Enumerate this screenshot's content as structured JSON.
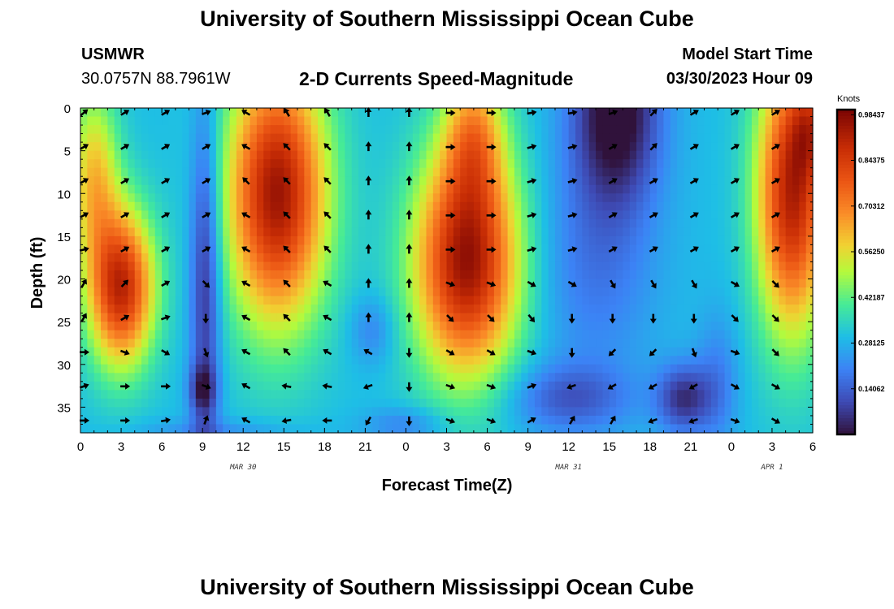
{
  "header": {
    "title": "University of Southern Mississippi Ocean Cube",
    "station": "USMWR",
    "coordinates": "30.0757N  88.7961W",
    "subtitle": "2-D Currents Speed-Magnitude",
    "model_start_label": "Model Start Time",
    "model_start_value": "03/30/2023 Hour 09"
  },
  "footer": {
    "title": "University of Southern Mississippi Ocean Cube"
  },
  "chart_data": {
    "type": "heatmap",
    "title": "2-D Currents Speed-Magnitude",
    "xlabel": "Forecast Time(Z)",
    "ylabel": "Depth (ft)",
    "x_range_hours": [
      0,
      54
    ],
    "x_ticks": [
      {
        "hour": 0,
        "label": "0"
      },
      {
        "hour": 3,
        "label": "3"
      },
      {
        "hour": 6,
        "label": "6"
      },
      {
        "hour": 9,
        "label": "9"
      },
      {
        "hour": 12,
        "label": "12"
      },
      {
        "hour": 15,
        "label": "15"
      },
      {
        "hour": 18,
        "label": "18"
      },
      {
        "hour": 21,
        "label": "21"
      },
      {
        "hour": 24,
        "label": "0"
      },
      {
        "hour": 27,
        "label": "3"
      },
      {
        "hour": 30,
        "label": "6"
      },
      {
        "hour": 33,
        "label": "9"
      },
      {
        "hour": 36,
        "label": "12"
      },
      {
        "hour": 39,
        "label": "15"
      },
      {
        "hour": 42,
        "label": "18"
      },
      {
        "hour": 45,
        "label": "21"
      },
      {
        "hour": 48,
        "label": "0"
      },
      {
        "hour": 51,
        "label": "3"
      },
      {
        "hour": 54,
        "label": "6"
      }
    ],
    "date_labels": [
      {
        "hour": 12,
        "label": "MAR 30"
      },
      {
        "hour": 36,
        "label": "MAR 31"
      },
      {
        "hour": 51,
        "label": "APR 1"
      }
    ],
    "y_range_ft": [
      0,
      38
    ],
    "y_ticks": [
      0,
      5,
      10,
      15,
      20,
      25,
      30,
      35
    ],
    "y_tick_labels": [
      "0",
      "5",
      "10",
      "15",
      "20",
      "25",
      "30",
      "35"
    ],
    "colorbar": {
      "unit": "Knots",
      "min": 0.0,
      "max": 1.0,
      "labels": [
        "0.98437",
        "0.84375",
        "0.70312",
        "0.56250",
        "0.42187",
        "0.28125",
        "0.14062"
      ],
      "label_values": [
        0.98437,
        0.84375,
        0.70312,
        0.5625,
        0.42187,
        0.28125,
        0.14062
      ]
    },
    "arrow_depths_ft": [
      0,
      4,
      8,
      12,
      16,
      20,
      24,
      28,
      32,
      36
    ],
    "arrow_hours": [
      0,
      3,
      6,
      9,
      12,
      15,
      18,
      21,
      24,
      27,
      30,
      33,
      36,
      39,
      42,
      45,
      48,
      51
    ],
    "arrow_directions_deg": [
      [
        -40,
        -30,
        -30,
        -20,
        -150,
        -120,
        -120,
        -90,
        -90,
        0,
        0,
        -10,
        -10,
        -20,
        -45,
        -30,
        -30,
        -30
      ],
      [
        -30,
        -30,
        -30,
        -30,
        -150,
        -135,
        -135,
        -90,
        -90,
        0,
        0,
        -15,
        -15,
        -30,
        -45,
        -30,
        -30,
        -30
      ],
      [
        -30,
        -30,
        -30,
        -30,
        -135,
        -135,
        -135,
        -90,
        -90,
        0,
        0,
        -15,
        -15,
        -30,
        -30,
        -30,
        -30,
        -30
      ],
      [
        -30,
        -30,
        -30,
        -30,
        -150,
        -135,
        -135,
        -90,
        -90,
        0,
        0,
        -15,
        -15,
        -30,
        -30,
        -30,
        -30,
        -30
      ],
      [
        -15,
        -30,
        -30,
        -30,
        -150,
        -135,
        -135,
        -90,
        -90,
        0,
        0,
        -15,
        -15,
        -30,
        -30,
        -30,
        -30,
        -30
      ],
      [
        -60,
        -45,
        -30,
        45,
        -150,
        -135,
        -150,
        -90,
        -90,
        20,
        20,
        30,
        30,
        60,
        60,
        60,
        30,
        45
      ],
      [
        -60,
        -30,
        -20,
        90,
        -150,
        -135,
        -150,
        -90,
        -90,
        45,
        45,
        50,
        90,
        90,
        90,
        90,
        45,
        45
      ],
      [
        0,
        20,
        30,
        70,
        -150,
        -135,
        -150,
        -150,
        90,
        30,
        30,
        20,
        90,
        135,
        135,
        70,
        20,
        45
      ],
      [
        -20,
        0,
        0,
        20,
        -150,
        -170,
        -170,
        160,
        90,
        20,
        20,
        -20,
        160,
        150,
        150,
        150,
        30,
        30
      ],
      [
        0,
        0,
        -10,
        -70,
        -150,
        170,
        180,
        120,
        90,
        20,
        20,
        -30,
        -60,
        -60,
        160,
        160,
        20,
        30
      ]
    ]
  }
}
